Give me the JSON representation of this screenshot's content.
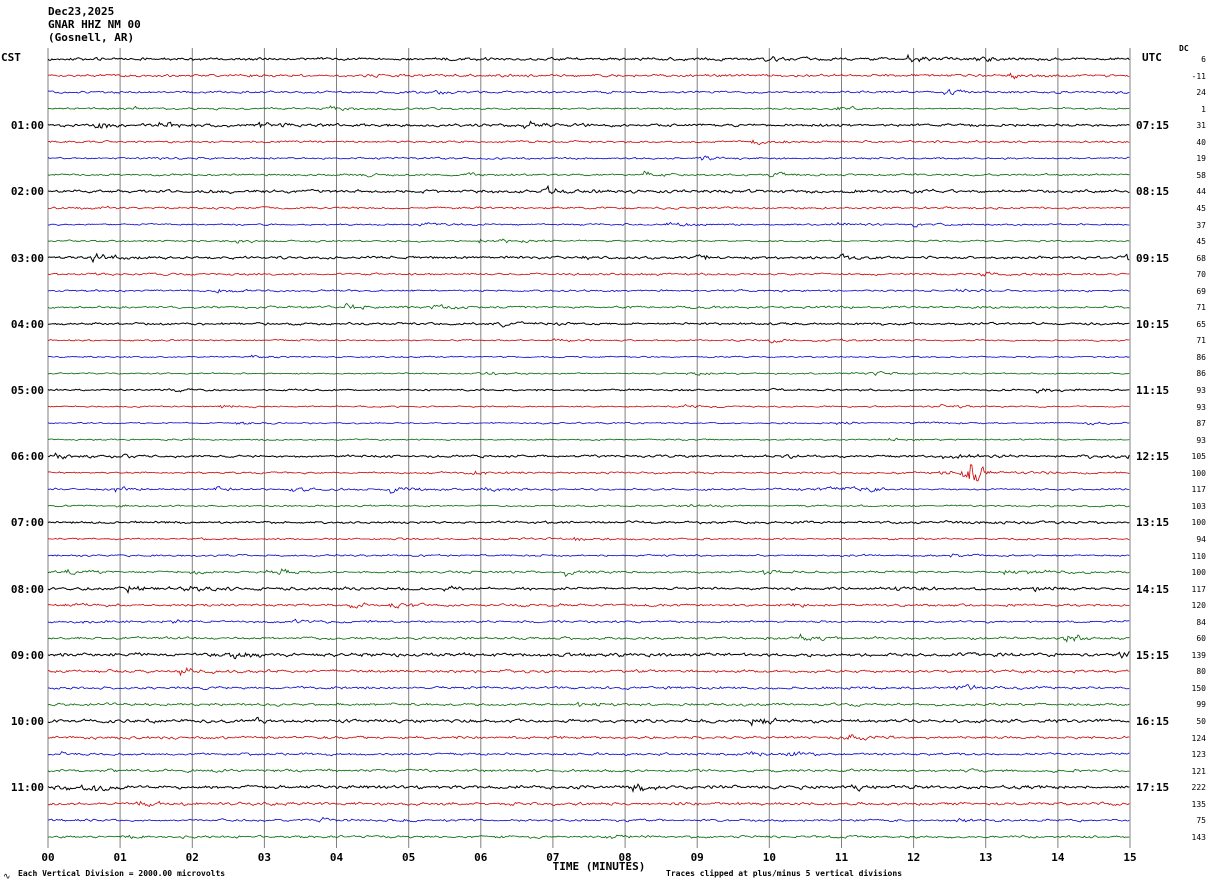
{
  "title": {
    "date": "Dec23,2025",
    "station": "GNAR HHZ NM 00",
    "location": "(Gosnell, AR)"
  },
  "axes": {
    "left_header": "CST",
    "right_header": "UTC",
    "dc_header": "DC",
    "x_label": "TIME (MINUTES)",
    "x_ticks": [
      "00",
      "01",
      "02",
      "03",
      "04",
      "05",
      "06",
      "07",
      "08",
      "09",
      "10",
      "11",
      "12",
      "13",
      "14",
      "15"
    ]
  },
  "footer": {
    "scale_note": "Each Vertical Division = 2000.00 microvolts",
    "clip_note": "Traces clipped at plus/minus 5 vertical divisions",
    "corner_mark": "∿"
  },
  "chart_data": {
    "type": "line",
    "subtype": "helicorder",
    "minutes_per_row": 15,
    "x_range": [
      0,
      15
    ],
    "rows": 48,
    "trace_colors_cycle": [
      "#000000",
      "#cc0000",
      "#0000cc",
      "#006600"
    ],
    "grid_color": "#808080",
    "clip_divisions": 5,
    "left_time_labels": [
      "01:00",
      "02:00",
      "03:00",
      "04:00",
      "05:00",
      "06:00",
      "07:00",
      "08:00",
      "09:00",
      "10:00",
      "11:00"
    ],
    "right_time_labels": [
      "07:15",
      "08:15",
      "09:15",
      "10:15",
      "11:15",
      "12:15",
      "13:15",
      "14:15",
      "15:15",
      "16:15",
      "17:15"
    ],
    "dc_values": [
      6,
      -11,
      24,
      1,
      31,
      40,
      19,
      58,
      44,
      45,
      37,
      45,
      68,
      70,
      69,
      71,
      65,
      71,
      86,
      86,
      93,
      93,
      87,
      93,
      105,
      100,
      117,
      103,
      100,
      94,
      110,
      100,
      117,
      120,
      84,
      60,
      139,
      80,
      150,
      99,
      50,
      124,
      123,
      121,
      222,
      135,
      75,
      143
    ],
    "row_amplitude": [
      1.0,
      1.1,
      0.9,
      0.8,
      1.0,
      0.9,
      0.8,
      0.8,
      1.2,
      0.9,
      0.7,
      0.7,
      1.0,
      0.9,
      0.8,
      0.9,
      0.9,
      0.7,
      0.6,
      0.6,
      0.7,
      0.6,
      0.6,
      0.6,
      0.9,
      0.8,
      0.8,
      0.7,
      0.9,
      0.8,
      0.8,
      0.9,
      1.0,
      1.0,
      0.9,
      1.0,
      1.3,
      1.2,
      1.1,
      1.1,
      1.2,
      1.1,
      1.0,
      1.1,
      1.3,
      1.2,
      0.9,
      1.0
    ],
    "events": [
      {
        "row_index": 25,
        "minute": 12.8,
        "width": 0.12,
        "amplitude": 5.0
      },
      {
        "row_index": 26,
        "minute": 11.1,
        "width": 0.45,
        "amplitude": 2.2
      },
      {
        "row_index": 31,
        "minute": 3.3,
        "width": 0.25,
        "amplitude": 2.5
      },
      {
        "row_index": 35,
        "minute": 14.2,
        "width": 0.2,
        "amplitude": 2.2
      }
    ]
  }
}
